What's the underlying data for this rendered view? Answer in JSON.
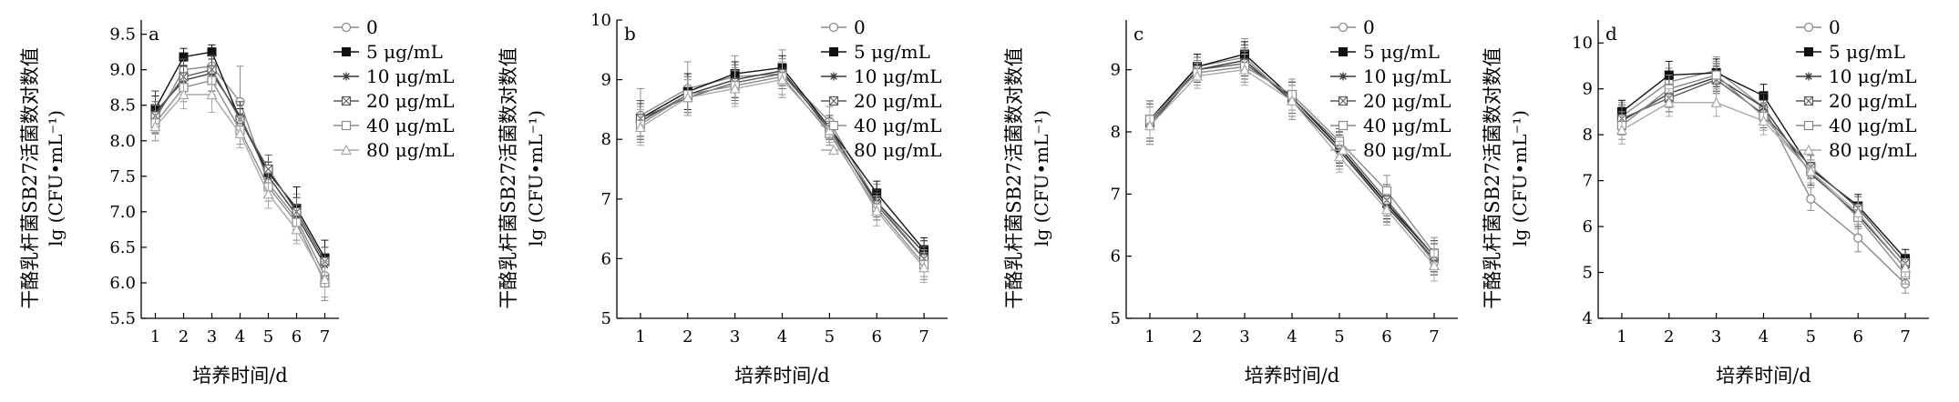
{
  "chart_data": [
    {
      "type": "line",
      "panel_label": "a",
      "xlabel": "培养时间/d",
      "ylabel": "干酪乳杆菌SB27活菌数对数值",
      "ylabel_unit": "lg (CFU•mL⁻¹)",
      "x": [
        1,
        2,
        3,
        4,
        5,
        6,
        7
      ],
      "xlim": [
        0.5,
        7.5
      ],
      "ylim": [
        5.5,
        9.7
      ],
      "yticks": [
        5.5,
        6.0,
        6.5,
        7.0,
        7.5,
        8.0,
        8.5,
        9.0,
        9.5
      ],
      "ytick_labels": [
        "5.5",
        "6.0",
        "6.5",
        "7.0",
        "7.5",
        "8.0",
        "8.5",
        "9.0",
        "9.5"
      ],
      "legend_position": "top-right",
      "series": [
        {
          "name": "0",
          "values": [
            8.3,
            9.0,
            9.05,
            8.55,
            7.4,
            6.9,
            6.1
          ],
          "error": [
            0.18,
            0.2,
            0.22,
            0.5,
            0.18,
            0.35,
            0.3
          ]
        },
        {
          "name": "5 μg/mL",
          "values": [
            8.45,
            9.18,
            9.25,
            8.3,
            7.55,
            7.05,
            6.35
          ],
          "error": [
            0.18,
            0.12,
            0.1,
            0.15,
            0.15,
            0.3,
            0.25
          ]
        },
        {
          "name": "10 μg/mL",
          "values": [
            8.4,
            8.85,
            8.95,
            8.35,
            7.5,
            6.95,
            6.25
          ],
          "error": [
            0.3,
            0.2,
            0.25,
            0.2,
            0.2,
            0.25,
            0.25
          ]
        },
        {
          "name": "20 μg/mL",
          "values": [
            8.35,
            8.9,
            9.0,
            8.3,
            7.6,
            7.0,
            6.3
          ],
          "error": [
            0.2,
            0.25,
            0.2,
            0.2,
            0.2,
            0.2,
            0.2
          ]
        },
        {
          "name": "40 μg/mL",
          "values": [
            8.25,
            8.75,
            8.85,
            8.15,
            7.35,
            6.85,
            6.0
          ],
          "error": [
            0.25,
            0.2,
            0.2,
            0.2,
            0.2,
            0.25,
            0.25
          ]
        },
        {
          "name": "80 μg/mL",
          "values": [
            8.2,
            8.65,
            8.65,
            8.1,
            7.25,
            6.75,
            6.05
          ],
          "error": [
            0.2,
            0.2,
            0.25,
            0.2,
            0.2,
            0.2,
            0.25
          ]
        }
      ]
    },
    {
      "type": "line",
      "panel_label": "b",
      "xlabel": "培养时间/d",
      "ylabel": "干酪乳杆菌SB27活菌数对数值",
      "ylabel_unit": "lg (CFU•mL⁻¹)",
      "x": [
        1,
        2,
        3,
        4,
        5,
        6,
        7
      ],
      "xlim": [
        0.5,
        7.5
      ],
      "ylim": [
        5,
        10
      ],
      "yticks": [
        5,
        6,
        7,
        8,
        9,
        10
      ],
      "ytick_labels": [
        "5",
        "6",
        "7",
        "8",
        "9",
        "10"
      ],
      "legend_position": "top-right",
      "series": [
        {
          "name": "0",
          "values": [
            8.4,
            8.85,
            9.05,
            9.1,
            8.3,
            6.95,
            6.0
          ],
          "error": [
            0.45,
            0.45,
            0.35,
            0.4,
            0.25,
            0.3,
            0.3
          ]
        },
        {
          "name": "5 μg/mL",
          "values": [
            8.35,
            8.8,
            9.1,
            9.2,
            8.2,
            7.1,
            6.15
          ],
          "error": [
            0.3,
            0.3,
            0.2,
            0.2,
            0.2,
            0.2,
            0.2
          ]
        },
        {
          "name": "10 μg/mL",
          "values": [
            8.3,
            8.75,
            9.0,
            9.15,
            8.15,
            6.95,
            6.1
          ],
          "error": [
            0.3,
            0.3,
            0.3,
            0.25,
            0.2,
            0.2,
            0.2
          ]
        },
        {
          "name": "20 μg/mL",
          "values": [
            8.35,
            8.7,
            8.95,
            9.1,
            8.2,
            6.9,
            6.0
          ],
          "error": [
            0.3,
            0.3,
            0.3,
            0.25,
            0.2,
            0.2,
            0.2
          ]
        },
        {
          "name": "40 μg/mL",
          "values": [
            8.25,
            8.75,
            8.9,
            9.05,
            8.1,
            6.85,
            5.9
          ],
          "error": [
            0.3,
            0.3,
            0.3,
            0.3,
            0.2,
            0.2,
            0.25
          ]
        },
        {
          "name": "80 μg/mL",
          "values": [
            8.2,
            8.7,
            8.85,
            9.0,
            8.15,
            6.8,
            5.85
          ],
          "error": [
            0.3,
            0.3,
            0.3,
            0.3,
            0.2,
            0.25,
            0.25
          ]
        }
      ]
    },
    {
      "type": "line",
      "panel_label": "c",
      "xlabel": "培养时间/d",
      "ylabel": "干酪乳杆菌SB27活菌数对数值",
      "ylabel_unit": "lg (CFU•mL⁻¹)",
      "x": [
        1,
        2,
        3,
        4,
        5,
        6,
        7
      ],
      "xlim": [
        0.5,
        7.5
      ],
      "ylim": [
        5,
        9.8
      ],
      "yticks": [
        5,
        6,
        7,
        8,
        9
      ],
      "ytick_labels": [
        "5",
        "6",
        "7",
        "8",
        "9"
      ],
      "legend_position": "top-right",
      "series": [
        {
          "name": "0",
          "values": [
            8.15,
            9.05,
            9.2,
            8.5,
            7.7,
            6.85,
            5.9
          ],
          "error": [
            0.3,
            0.2,
            0.3,
            0.3,
            0.3,
            0.3,
            0.3
          ]
        },
        {
          "name": "5 μg/mL",
          "values": [
            8.2,
            9.05,
            9.25,
            8.55,
            7.75,
            6.85,
            6.0
          ],
          "error": [
            0.3,
            0.2,
            0.2,
            0.25,
            0.25,
            0.25,
            0.25
          ]
        },
        {
          "name": "10 μg/mL",
          "values": [
            8.1,
            9.0,
            9.15,
            8.5,
            7.7,
            6.8,
            5.95
          ],
          "error": [
            0.3,
            0.2,
            0.25,
            0.25,
            0.25,
            0.25,
            0.25
          ]
        },
        {
          "name": "20 μg/mL",
          "values": [
            8.15,
            9.0,
            9.1,
            8.55,
            7.8,
            6.9,
            6.0
          ],
          "error": [
            0.3,
            0.2,
            0.25,
            0.25,
            0.25,
            0.25,
            0.25
          ]
        },
        {
          "name": "40 μg/mL",
          "values": [
            8.2,
            8.95,
            9.05,
            8.6,
            7.85,
            7.05,
            6.05
          ],
          "error": [
            0.3,
            0.2,
            0.25,
            0.25,
            0.25,
            0.25,
            0.25
          ]
        },
        {
          "name": "80 μg/mL",
          "values": [
            8.1,
            8.9,
            9.0,
            8.5,
            7.6,
            6.75,
            5.85
          ],
          "error": [
            0.3,
            0.2,
            0.25,
            0.25,
            0.25,
            0.25,
            0.25
          ]
        }
      ]
    },
    {
      "type": "line",
      "panel_label": "d",
      "xlabel": "培养时间/d",
      "ylabel": "干酪乳杆菌SB27活菌数对数值",
      "ylabel_unit": "lg (CFU•mL⁻¹)",
      "x": [
        1,
        2,
        3,
        4,
        5,
        6,
        7
      ],
      "xlim": [
        0.5,
        7.5
      ],
      "ylim": [
        4,
        10.5
      ],
      "yticks": [
        4,
        5,
        6,
        7,
        8,
        9,
        10
      ],
      "ytick_labels": [
        "4",
        "5",
        "6",
        "7",
        "8",
        "9",
        "10"
      ],
      "legend_position": "top-right",
      "series": [
        {
          "name": "0",
          "values": [
            8.4,
            9.15,
            9.4,
            8.6,
            6.6,
            5.75,
            4.75
          ],
          "error": [
            0.3,
            0.3,
            0.3,
            0.3,
            0.25,
            0.3,
            0.2
          ]
        },
        {
          "name": "5 μg/mL",
          "values": [
            8.5,
            9.3,
            9.35,
            8.85,
            7.25,
            6.45,
            5.3
          ],
          "error": [
            0.25,
            0.3,
            0.3,
            0.25,
            0.2,
            0.25,
            0.2
          ]
        },
        {
          "name": "10 μg/mL",
          "values": [
            8.3,
            8.9,
            9.25,
            8.6,
            7.15,
            6.25,
            5.1
          ],
          "error": [
            0.3,
            0.3,
            0.3,
            0.3,
            0.25,
            0.25,
            0.2
          ]
        },
        {
          "name": "20 μg/mL",
          "values": [
            8.35,
            8.8,
            9.2,
            8.45,
            7.3,
            6.4,
            5.2
          ],
          "error": [
            0.3,
            0.3,
            0.3,
            0.3,
            0.25,
            0.25,
            0.2
          ]
        },
        {
          "name": "40 μg/mL",
          "values": [
            8.2,
            9.0,
            9.3,
            8.4,
            7.2,
            6.2,
            4.95
          ],
          "error": [
            0.3,
            0.3,
            0.3,
            0.3,
            0.25,
            0.25,
            0.2
          ]
        },
        {
          "name": "80 μg/mL",
          "values": [
            8.1,
            8.7,
            8.7,
            8.3,
            7.2,
            6.3,
            5.1
          ],
          "error": [
            0.3,
            0.3,
            0.3,
            0.3,
            0.25,
            0.25,
            0.2
          ]
        }
      ]
    }
  ],
  "colors": {
    "series": [
      "#8c8c8c",
      "#111111",
      "#3a3a3a",
      "#5c5c5c",
      "#8a8a8a",
      "#a8a8a8"
    ],
    "axis": "#000000"
  },
  "markers": [
    "open-circle",
    "filled-square",
    "asterisk",
    "x-square",
    "open-square",
    "open-triangle"
  ]
}
